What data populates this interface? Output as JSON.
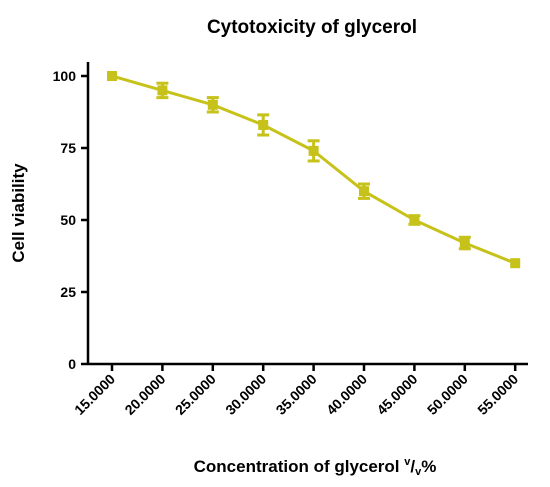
{
  "chart_data": {
    "type": "line",
    "title": "Cytotoxicity of glycerol",
    "xlabel_main": "Concentration of glycerol ",
    "xlabel_sup": "v",
    "xlabel_slash": "/",
    "xlabel_sub": "v",
    "xlabel_end": "%",
    "ylabel": "Cell viability",
    "categories": [
      "15.0000",
      "20.0000",
      "25.0000",
      "30.0000",
      "35.0000",
      "40.0000",
      "45.0000",
      "50.0000",
      "55.0000"
    ],
    "yticks": [
      0,
      25,
      50,
      75,
      100
    ],
    "ylim": [
      0,
      105
    ],
    "grid": false,
    "color": "#c7c21a",
    "series": [
      {
        "values": [
          100,
          95,
          90,
          83,
          74,
          60,
          50,
          42,
          35
        ],
        "errors": [
          0,
          2.5,
          2.5,
          3.5,
          3.5,
          2.5,
          1.5,
          2,
          0
        ]
      }
    ]
  }
}
